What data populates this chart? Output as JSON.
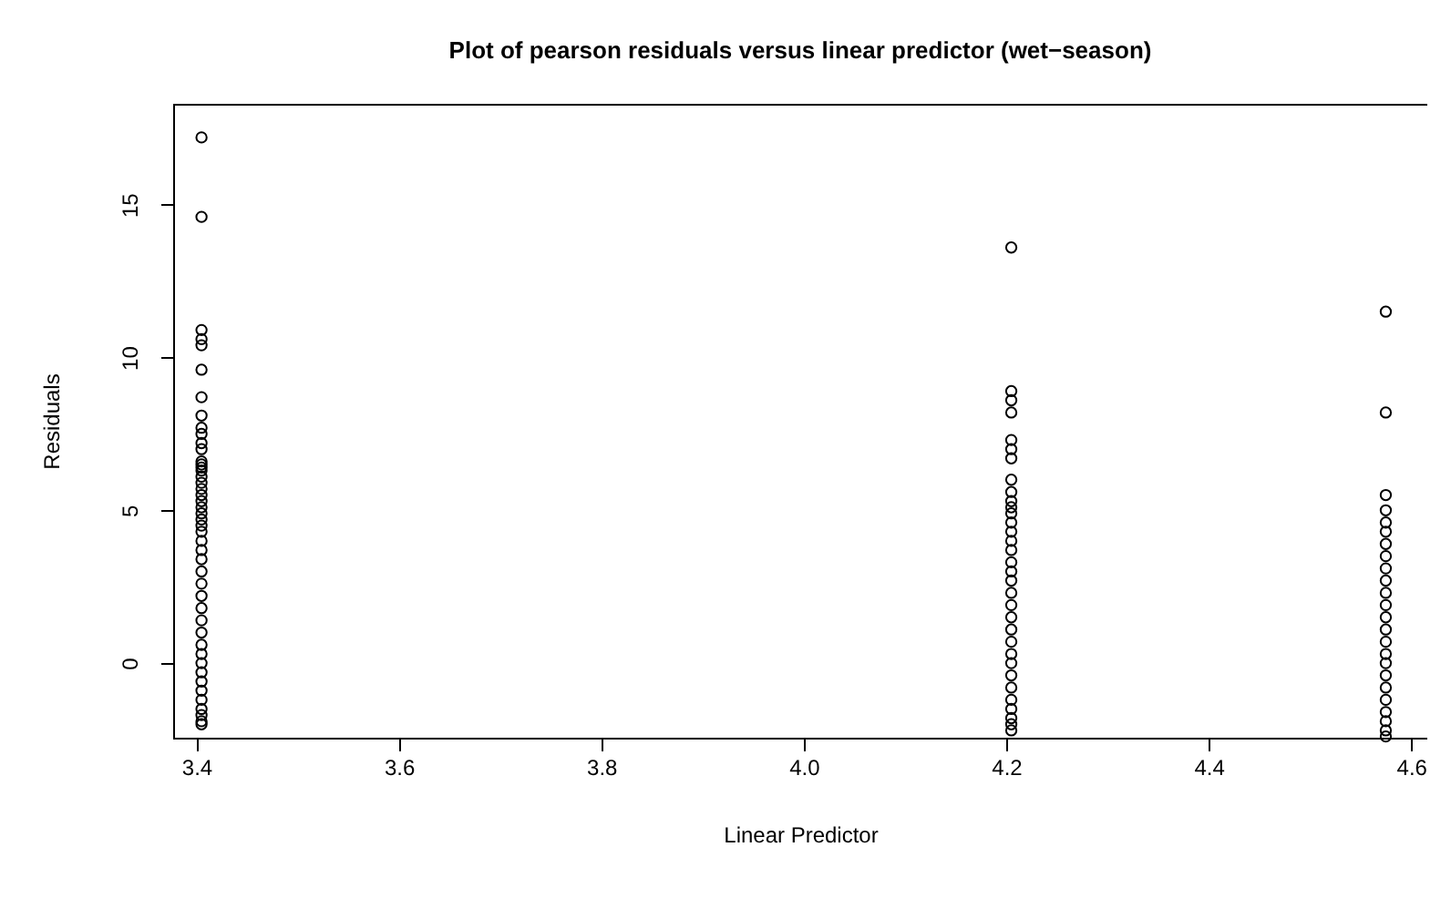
{
  "chart_data": {
    "type": "scatter",
    "title": "Plot of pearson residuals versus linear predictor (wet−season)",
    "xlabel": "Linear Predictor",
    "ylabel": "Residuals",
    "xlim": [
      3.377,
      4.616
    ],
    "ylim": [
      -2.44,
      18.3
    ],
    "xticks": [
      3.4,
      3.6,
      3.8,
      {
        "value": 4,
        "label": "4.0"
      },
      4.2,
      4.4,
      4.6
    ],
    "yticks": [
      0,
      5,
      10,
      15
    ],
    "grid": false,
    "marker": "circle",
    "series": [
      {
        "color": "#000000",
        "x": [
          3.405,
          3.405,
          3.405,
          3.405,
          3.405,
          3.405,
          3.405,
          3.405,
          3.405,
          3.405,
          3.405,
          3.405,
          3.405,
          3.405,
          3.405,
          3.405,
          3.405,
          3.405,
          3.405,
          3.405,
          3.405,
          3.405,
          3.405,
          3.405,
          3.405,
          3.405,
          3.405,
          3.405,
          3.405,
          3.405,
          3.405,
          3.405,
          3.405,
          3.405,
          3.405,
          3.405,
          3.405,
          3.405,
          3.405,
          3.405,
          3.405,
          3.405,
          3.405,
          3.405,
          3.405,
          3.405,
          4.205,
          4.205,
          4.205,
          4.205,
          4.205,
          4.205,
          4.205,
          4.205,
          4.205,
          4.205,
          4.205,
          4.205,
          4.205,
          4.205,
          4.205,
          4.205,
          4.205,
          4.205,
          4.205,
          4.205,
          4.205,
          4.205,
          4.205,
          4.205,
          4.205,
          4.205,
          4.205,
          4.205,
          4.205,
          4.205,
          4.205,
          4.205,
          4.205,
          4.575,
          4.575,
          4.575,
          4.575,
          4.575,
          4.575,
          4.575,
          4.575,
          4.575,
          4.575,
          4.575,
          4.575,
          4.575,
          4.575,
          4.575,
          4.575,
          4.575,
          4.575,
          4.575,
          4.575,
          4.575,
          4.575,
          4.575,
          4.575
        ],
        "values": [
          17.2,
          14.6,
          10.9,
          10.6,
          10.4,
          9.6,
          8.7,
          8.1,
          7.7,
          7.5,
          7.2,
          7.0,
          6.6,
          6.5,
          6.4,
          6.3,
          6.1,
          5.9,
          5.7,
          5.5,
          5.3,
          5.1,
          4.9,
          4.7,
          4.5,
          4.3,
          4.0,
          3.7,
          3.4,
          3.0,
          2.6,
          2.2,
          1.8,
          1.4,
          1.0,
          0.6,
          0.3,
          0.0,
          -0.3,
          -0.6,
          -0.9,
          -1.2,
          -1.5,
          -1.7,
          -1.9,
          -2.0,
          13.6,
          8.9,
          8.6,
          8.2,
          7.3,
          7.0,
          6.7,
          6.0,
          5.6,
          5.3,
          5.1,
          4.9,
          4.6,
          4.3,
          4.0,
          3.7,
          3.3,
          3.0,
          2.7,
          2.3,
          1.9,
          1.5,
          1.1,
          0.7,
          0.3,
          0.0,
          -0.4,
          -0.8,
          -1.2,
          -1.5,
          -1.8,
          -2.0,
          -2.2,
          11.5,
          8.2,
          5.5,
          5.0,
          4.6,
          4.3,
          3.9,
          3.5,
          3.1,
          2.7,
          2.3,
          1.9,
          1.5,
          1.1,
          0.7,
          0.3,
          0.0,
          -0.4,
          -0.8,
          -1.2,
          -1.6,
          -1.9,
          -2.2,
          -2.4
        ]
      }
    ]
  }
}
